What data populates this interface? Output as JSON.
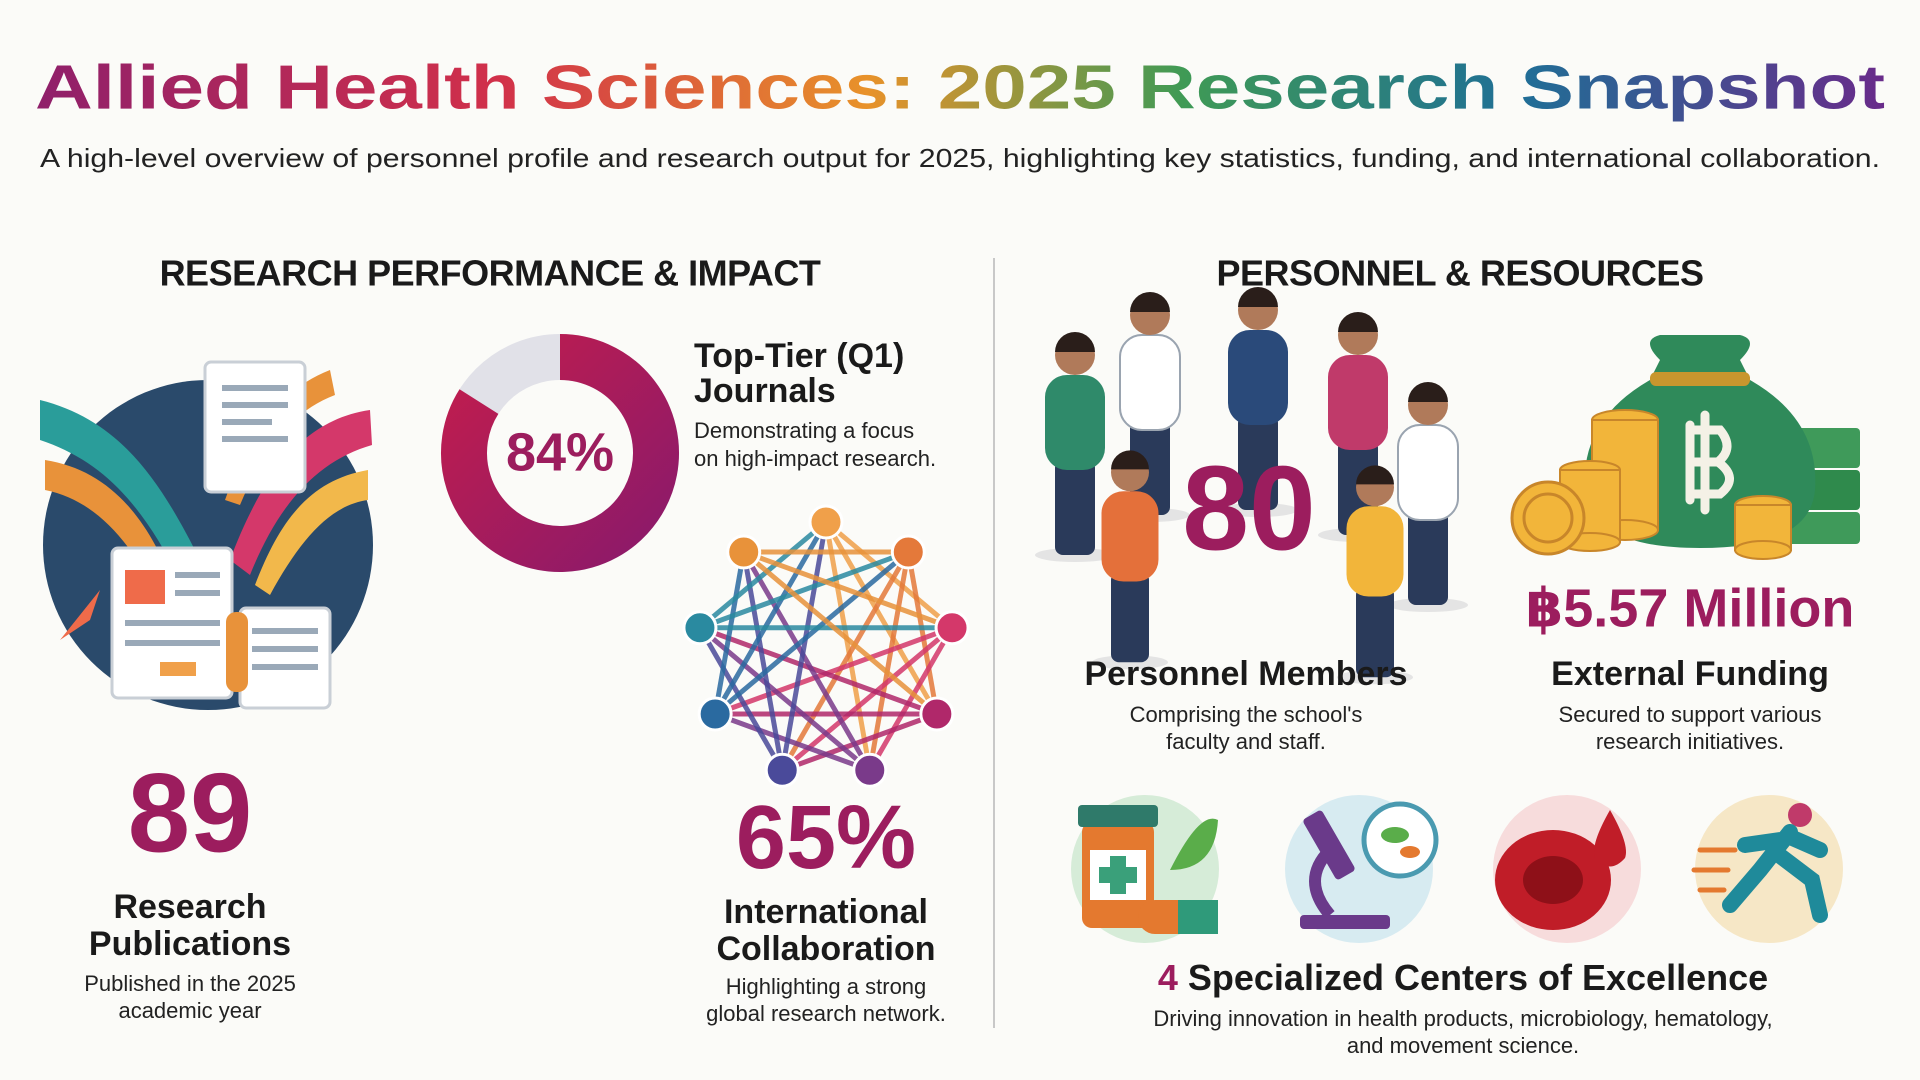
{
  "header": {
    "title": "Allied Health Sciences: 2025 Research Snapshot",
    "subtitle": "A high-level overview of personnel profile and research output for 2025, highlighting key statistics, funding, and international collaboration."
  },
  "research": {
    "heading": "RESEARCH PERFORMANCE & IMPACT",
    "publications": {
      "count": "89",
      "title_lines": [
        "Research",
        "Publications"
      ],
      "description_lines": [
        "Published in the 2025",
        "academic year"
      ]
    },
    "q1": {
      "share": {
        "value": 84,
        "label": "84%"
      },
      "title_lines": [
        "Top-Tier (Q1)",
        "Journals"
      ],
      "description_lines": [
        "Demonstrating a focus",
        "on high-impact research."
      ]
    },
    "international": {
      "stat": "65%",
      "title_lines": [
        "International",
        "Collaboration"
      ],
      "description_lines": [
        "Highlighting a strong",
        "global research network."
      ]
    }
  },
  "personnel": {
    "heading": "PERSONNEL & RESOURCES",
    "members": {
      "count": "80",
      "title": "Personnel Members",
      "description_lines": [
        "Comprising the school's",
        "faculty and staff."
      ]
    },
    "funding": {
      "amount": "฿5.57 Million",
      "title": "External Funding",
      "description_lines": [
        "Secured to support various",
        "research initiatives."
      ]
    },
    "centers": {
      "count": "4",
      "title": "Specialized Centers of Excellence",
      "description_lines": [
        "Driving innovation in health products, microbiology, hematology,",
        "and movement science."
      ]
    }
  }
}
